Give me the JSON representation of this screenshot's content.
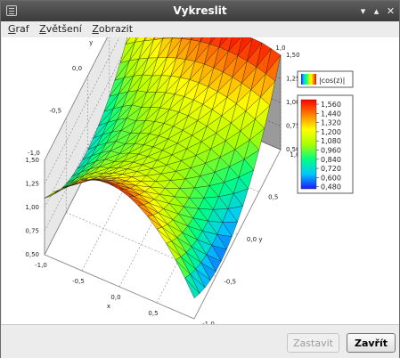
{
  "window": {
    "title": "Vykreslit"
  },
  "menu": [
    {
      "accel": "G",
      "rest": "raf"
    },
    {
      "accel": "Z",
      "rest": "většení"
    },
    {
      "accel": "Z",
      "rest": "obrazit"
    }
  ],
  "icons": {
    "window": "window-menu-icon",
    "minimize": "minimize-icon",
    "maximize": "maximize-icon",
    "close": "close-icon"
  },
  "chart_data": {
    "type": "surface3d",
    "function": "|cos(z)|",
    "legend_label": "|cos(z)|",
    "x_axis_label": "x",
    "y_axis_label": "y",
    "x_ticks": [
      "-1,0",
      "-0,5",
      "0,0",
      "0,5",
      "1,0"
    ],
    "y_ticks": [
      "-1,0",
      "-0,5",
      "0,0",
      "0,5",
      "1,0"
    ],
    "z_ticks": [
      "0,50",
      "0,75",
      "1,00",
      "1,25",
      "1,50"
    ],
    "xlim": [
      -1,
      1
    ],
    "ylim": [
      -1,
      1
    ],
    "zlim": [
      0.5,
      1.5
    ],
    "colorbar_ticks": [
      "1,560",
      "1,440",
      "1,320",
      "1,200",
      "1,080",
      "0,960",
      "0,840",
      "0,720",
      "0,600",
      "0,480"
    ],
    "colorbar_range": [
      0.48,
      1.56
    ],
    "colormap": [
      "#1a1aff",
      "#00c8ff",
      "#00ff80",
      "#aaff00",
      "#ffff00",
      "#ff8000",
      "#ff0000"
    ],
    "grid": true
  },
  "buttons": {
    "save": "Zastavit",
    "close": "Zavřít"
  }
}
